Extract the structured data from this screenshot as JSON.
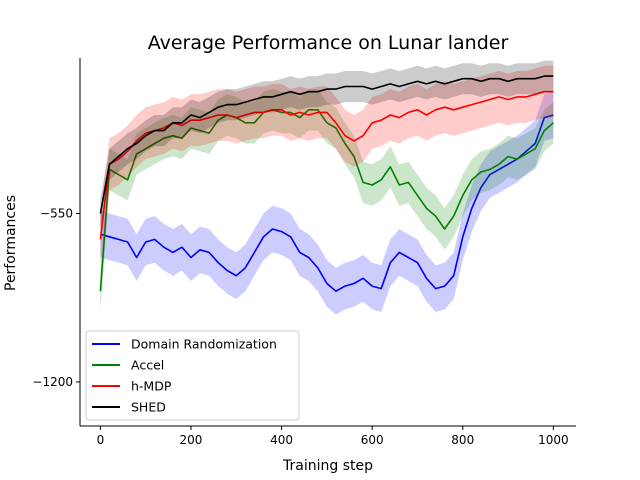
{
  "chart_data": {
    "type": "line",
    "title": "Average Performance on Lunar lander",
    "xlabel": "Training step",
    "ylabel": "Performances",
    "xlim": [
      -45,
      1050
    ],
    "ylim": [
      -1370,
      50
    ],
    "xticks": [
      0,
      200,
      400,
      600,
      800,
      1000
    ],
    "yticks": [
      -550,
      -1200
    ],
    "xtick_labels": [
      "0",
      "200",
      "400",
      "600",
      "800",
      "1000"
    ],
    "ytick_labels": [
      "−550",
      "−1200"
    ],
    "legend_position": "lower-left",
    "grid": false,
    "series": [
      {
        "name": "Domain Randomization",
        "color": "#0000ff",
        "x": [
          0,
          20,
          40,
          60,
          80,
          100,
          120,
          140,
          160,
          180,
          200,
          220,
          240,
          260,
          280,
          300,
          320,
          340,
          360,
          380,
          400,
          420,
          440,
          460,
          480,
          500,
          520,
          540,
          560,
          580,
          600,
          620,
          640,
          660,
          680,
          700,
          720,
          740,
          760,
          780,
          800,
          820,
          840,
          860,
          880,
          900,
          920,
          940,
          960,
          980,
          1000
        ],
        "y": [
          -630,
          -640,
          -650,
          -660,
          -720,
          -660,
          -650,
          -680,
          -700,
          -680,
          -720,
          -690,
          -700,
          -740,
          -770,
          -790,
          -760,
          -700,
          -640,
          -610,
          -620,
          -640,
          -700,
          -720,
          -760,
          -820,
          -850,
          -830,
          -820,
          -800,
          -830,
          -840,
          -740,
          -700,
          -720,
          -740,
          -800,
          -840,
          -830,
          -790,
          -640,
          -530,
          -450,
          -400,
          -380,
          -360,
          -340,
          -310,
          -280,
          -180,
          -170
        ],
        "band": 90
      },
      {
        "name": "Accel",
        "color": "#008000",
        "x": [
          0,
          20,
          40,
          60,
          80,
          100,
          120,
          140,
          160,
          180,
          200,
          220,
          240,
          260,
          280,
          300,
          320,
          340,
          360,
          380,
          400,
          420,
          440,
          460,
          480,
          500,
          520,
          540,
          560,
          580,
          600,
          620,
          640,
          660,
          680,
          700,
          720,
          740,
          760,
          780,
          800,
          820,
          840,
          860,
          880,
          900,
          920,
          940,
          960,
          980,
          1000
        ],
        "y": [
          -850,
          -380,
          -400,
          -420,
          -320,
          -300,
          -280,
          -260,
          -250,
          -260,
          -220,
          -230,
          -240,
          -190,
          -170,
          -180,
          -200,
          -200,
          -160,
          -150,
          -160,
          -160,
          -180,
          -150,
          -150,
          -200,
          -220,
          -280,
          -330,
          -430,
          -440,
          -420,
          -370,
          -440,
          -430,
          -480,
          -530,
          -560,
          -610,
          -560,
          -480,
          -420,
          -390,
          -380,
          -360,
          -330,
          -340,
          -320,
          -300,
          -230,
          -200
        ],
        "band": 80
      },
      {
        "name": "h-MDP",
        "color": "#ff0000",
        "x": [
          0,
          20,
          40,
          60,
          80,
          100,
          120,
          140,
          160,
          180,
          200,
          220,
          240,
          260,
          280,
          300,
          320,
          340,
          360,
          380,
          400,
          420,
          440,
          460,
          480,
          500,
          520,
          540,
          560,
          580,
          600,
          620,
          640,
          660,
          680,
          700,
          720,
          740,
          760,
          780,
          800,
          820,
          840,
          860,
          880,
          900,
          920,
          940,
          960,
          980,
          1000
        ],
        "y": [
          -650,
          -360,
          -340,
          -310,
          -270,
          -240,
          -230,
          -220,
          -200,
          -210,
          -190,
          -190,
          -180,
          -170,
          -170,
          -180,
          -170,
          -160,
          -160,
          -150,
          -150,
          -170,
          -160,
          -170,
          -160,
          -160,
          -200,
          -250,
          -270,
          -250,
          -200,
          -190,
          -170,
          -180,
          -160,
          -150,
          -170,
          -150,
          -140,
          -150,
          -140,
          -130,
          -120,
          -110,
          -100,
          -110,
          -100,
          -100,
          -90,
          -80,
          -80
        ],
        "band": 100
      },
      {
        "name": "SHED",
        "color": "#000000",
        "x": [
          0,
          20,
          40,
          60,
          80,
          100,
          120,
          140,
          160,
          180,
          200,
          220,
          240,
          260,
          280,
          300,
          320,
          340,
          360,
          380,
          400,
          420,
          440,
          460,
          480,
          500,
          520,
          540,
          560,
          580,
          600,
          620,
          640,
          660,
          680,
          700,
          720,
          740,
          760,
          780,
          800,
          820,
          840,
          860,
          880,
          900,
          920,
          940,
          960,
          980,
          1000
        ],
        "y": [
          -550,
          -360,
          -330,
          -300,
          -280,
          -250,
          -230,
          -230,
          -200,
          -200,
          -170,
          -180,
          -160,
          -140,
          -130,
          -130,
          -120,
          -110,
          -100,
          -100,
          -90,
          -80,
          -90,
          -80,
          -80,
          -70,
          -70,
          -60,
          -60,
          -60,
          -70,
          -60,
          -50,
          -60,
          -50,
          -40,
          -50,
          -40,
          -50,
          -40,
          -30,
          -30,
          -40,
          -30,
          -30,
          -40,
          -30,
          -30,
          -30,
          -20,
          -20
        ],
        "band": 60
      }
    ]
  }
}
